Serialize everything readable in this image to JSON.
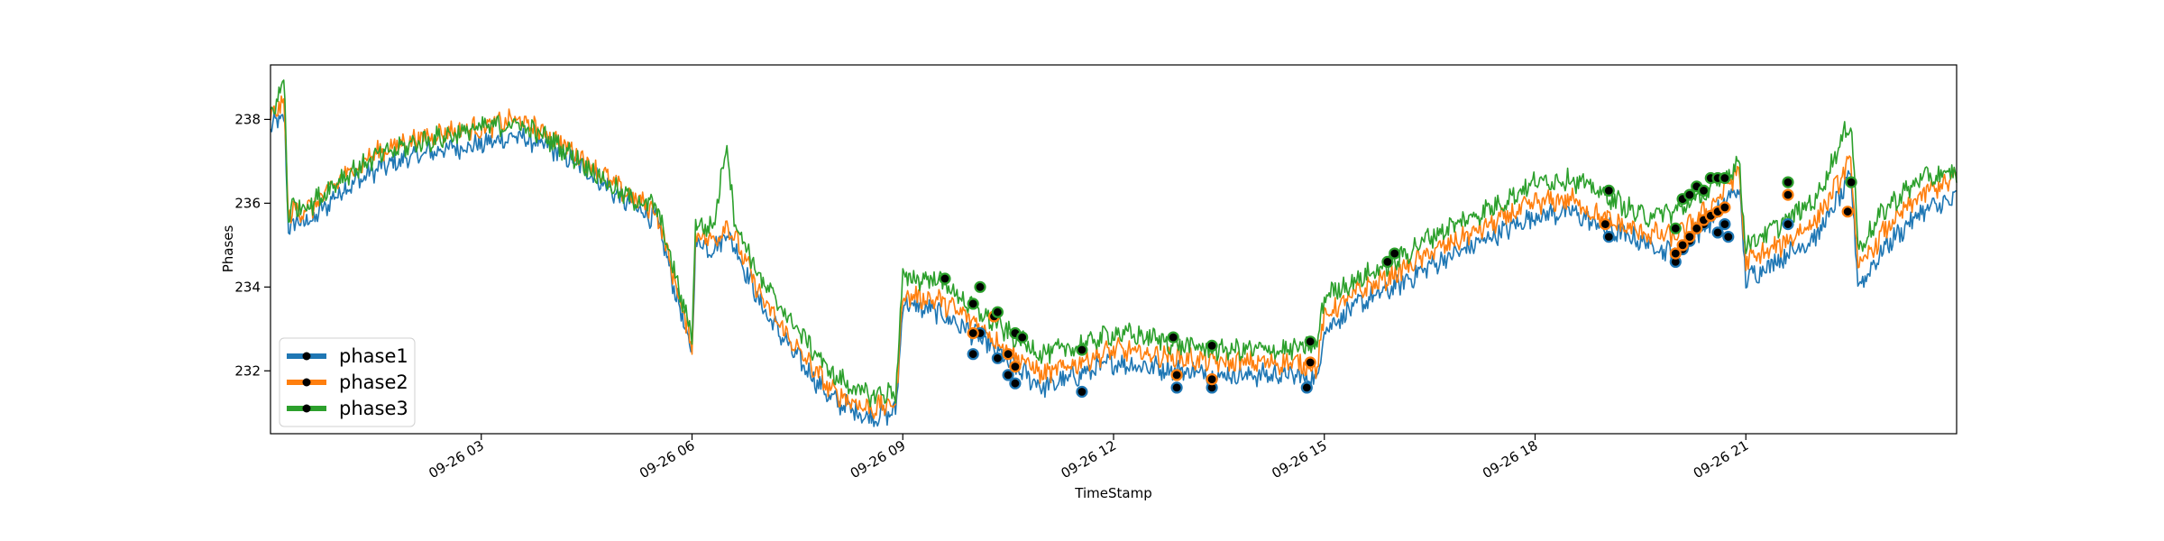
{
  "chart_data": {
    "type": "line",
    "title": "",
    "xlabel": "TimeStamp",
    "ylabel": "Phases",
    "x_range": [
      "09-26 00:00",
      "09-26 24:00"
    ],
    "ylim": [
      230.5,
      239.3
    ],
    "x_ticks": [
      {
        "hour": 3,
        "label": "09-26 03"
      },
      {
        "hour": 6,
        "label": "09-26 06"
      },
      {
        "hour": 9,
        "label": "09-26 09"
      },
      {
        "hour": 12,
        "label": "09-26 12"
      },
      {
        "hour": 15,
        "label": "09-26 15"
      },
      {
        "hour": 18,
        "label": "09-26 18"
      },
      {
        "hour": 21,
        "label": "09-26 21"
      }
    ],
    "y_ticks": [
      232,
      234,
      236,
      238
    ],
    "grid": false,
    "legend": {
      "position": "lower-left",
      "entries": [
        "phase1",
        "phase2",
        "phase3"
      ]
    },
    "anomaly_marker_color": "#000000",
    "series": [
      {
        "name": "phase1",
        "color": "#1f77b4",
        "x": [
          0,
          0.1,
          0.2,
          0.25,
          0.3,
          0.6,
          1,
          1.5,
          2,
          2.5,
          3,
          3.5,
          4,
          4.5,
          5,
          5.5,
          5.9,
          6,
          6.05,
          6.3,
          6.5,
          6.6,
          7,
          7.5,
          8,
          8.5,
          8.9,
          9,
          9.5,
          10,
          10.5,
          11,
          11.5,
          12,
          12.5,
          13,
          13.5,
          14,
          14.5,
          14.9,
          15,
          15.5,
          16,
          16.5,
          17,
          17.5,
          18,
          18.5,
          19,
          19.5,
          20,
          20.5,
          20.9,
          21,
          21.5,
          22,
          22.5,
          22.6,
          23,
          23.5,
          24
        ],
        "y": [
          237.7,
          238.0,
          238.0,
          235.4,
          235.5,
          235.6,
          236.3,
          236.8,
          237.1,
          237.3,
          237.4,
          237.6,
          237.3,
          236.8,
          236.1,
          235.6,
          233.0,
          232.4,
          235.1,
          234.9,
          235.3,
          235.0,
          233.5,
          232.3,
          231.3,
          230.9,
          231.0,
          233.6,
          233.4,
          232.9,
          232.2,
          231.6,
          231.9,
          232.2,
          232.1,
          232.0,
          231.9,
          231.9,
          231.9,
          231.8,
          233.0,
          233.6,
          234.0,
          234.5,
          234.9,
          235.3,
          235.7,
          235.8,
          235.4,
          235.1,
          234.8,
          235.6,
          236.4,
          234.2,
          234.7,
          235.2,
          236.6,
          234.0,
          235.0,
          235.8,
          236.1
        ]
      },
      {
        "name": "phase2",
        "color": "#ff7f0e",
        "x": [
          0,
          0.1,
          0.2,
          0.25,
          0.3,
          0.6,
          1,
          1.5,
          2,
          2.5,
          3,
          3.5,
          4,
          4.5,
          5,
          5.5,
          5.9,
          6,
          6.05,
          6.3,
          6.5,
          6.6,
          7,
          7.5,
          8,
          8.5,
          8.9,
          9,
          9.5,
          10,
          10.5,
          11,
          11.5,
          12,
          12.5,
          13,
          13.5,
          14,
          14.5,
          14.9,
          15,
          15.5,
          16,
          16.5,
          17,
          17.5,
          18,
          18.5,
          19,
          19.5,
          20,
          20.5,
          20.9,
          21,
          21.5,
          22,
          22.5,
          22.6,
          23,
          23.5,
          24
        ],
        "y": [
          238.0,
          238.3,
          238.3,
          235.7,
          235.8,
          235.9,
          236.6,
          237.2,
          237.5,
          237.7,
          237.8,
          238.0,
          237.6,
          237.0,
          236.3,
          235.8,
          233.2,
          232.6,
          235.3,
          235.1,
          235.5,
          235.2,
          233.7,
          232.5,
          231.5,
          231.1,
          231.2,
          233.8,
          233.7,
          233.2,
          232.5,
          231.9,
          232.2,
          232.5,
          232.4,
          232.3,
          232.2,
          232.2,
          232.2,
          232.1,
          233.3,
          233.9,
          234.3,
          234.8,
          235.2,
          235.6,
          236.0,
          236.1,
          235.6,
          235.3,
          235.2,
          235.9,
          236.8,
          234.6,
          235.0,
          235.6,
          237.0,
          234.4,
          235.4,
          236.2,
          236.6
        ]
      },
      {
        "name": "phase3",
        "color": "#2ca02c",
        "x": [
          0,
          0.1,
          0.2,
          0.25,
          0.3,
          0.6,
          1,
          1.5,
          2,
          2.5,
          3,
          3.5,
          4,
          4.5,
          5,
          5.5,
          5.9,
          6,
          6.05,
          6.3,
          6.5,
          6.6,
          7,
          7.5,
          8,
          8.5,
          8.9,
          9,
          9.5,
          10,
          10.5,
          11,
          11.5,
          12,
          12.5,
          13,
          13.5,
          14,
          14.5,
          14.9,
          15,
          15.5,
          16,
          16.5,
          17,
          17.5,
          18,
          18.5,
          19,
          19.5,
          20,
          20.5,
          20.9,
          21,
          21.5,
          22,
          22.5,
          22.6,
          23,
          23.5,
          24
        ],
        "y": [
          238.1,
          238.5,
          238.9,
          235.6,
          235.9,
          236.0,
          236.6,
          237.1,
          237.4,
          237.6,
          237.8,
          237.9,
          237.5,
          236.9,
          236.2,
          235.9,
          233.4,
          232.9,
          235.5,
          235.4,
          237.5,
          235.6,
          234.1,
          233.0,
          231.9,
          231.4,
          231.5,
          234.2,
          234.2,
          233.5,
          232.9,
          232.4,
          232.6,
          232.9,
          232.8,
          232.6,
          232.5,
          232.5,
          232.5,
          232.6,
          233.8,
          234.2,
          234.6,
          235.2,
          235.6,
          236.0,
          236.5,
          236.6,
          236.2,
          235.7,
          235.8,
          236.3,
          237.0,
          235.0,
          235.5,
          236.1,
          238.0,
          234.9,
          235.9,
          236.6,
          236.7
        ]
      }
    ],
    "anomalies": [
      {
        "series": "phase1",
        "x": [
          10.0,
          10.1,
          10.35,
          10.5,
          10.6,
          11.55,
          12.9,
          13.4,
          14.75,
          19.05,
          20.0,
          20.1,
          20.2,
          20.3,
          20.4,
          20.5,
          20.6,
          20.7,
          20.75,
          21.6
        ],
        "y": [
          232.4,
          232.9,
          232.3,
          231.9,
          231.7,
          231.5,
          231.6,
          231.6,
          231.6,
          235.2,
          234.6,
          234.9,
          235.1,
          235.4,
          235.5,
          235.7,
          235.3,
          235.5,
          235.2,
          235.5
        ]
      },
      {
        "series": "phase2",
        "x": [
          10.0,
          10.3,
          10.5,
          10.6,
          12.9,
          13.4,
          14.8,
          19.0,
          20.0,
          20.1,
          20.2,
          20.3,
          20.4,
          20.5,
          20.6,
          20.7,
          21.6,
          22.45
        ],
        "y": [
          232.9,
          233.3,
          232.4,
          232.1,
          231.9,
          231.8,
          232.2,
          235.5,
          234.8,
          235.0,
          235.2,
          235.4,
          235.6,
          235.7,
          235.8,
          235.9,
          236.2,
          235.8
        ]
      },
      {
        "series": "phase3",
        "x": [
          9.6,
          10.0,
          10.1,
          10.35,
          10.6,
          10.7,
          11.55,
          12.85,
          13.4,
          14.8,
          15.9,
          16.0,
          19.05,
          20.0,
          20.1,
          20.2,
          20.3,
          20.4,
          20.5,
          20.6,
          20.7,
          21.6,
          22.5
        ],
        "y": [
          234.2,
          233.6,
          234.0,
          233.4,
          232.9,
          232.8,
          232.5,
          232.8,
          232.6,
          232.7,
          234.6,
          234.8,
          236.3,
          235.4,
          236.1,
          236.2,
          236.4,
          236.3,
          236.6,
          236.6,
          236.6,
          236.5,
          236.5
        ]
      }
    ]
  }
}
